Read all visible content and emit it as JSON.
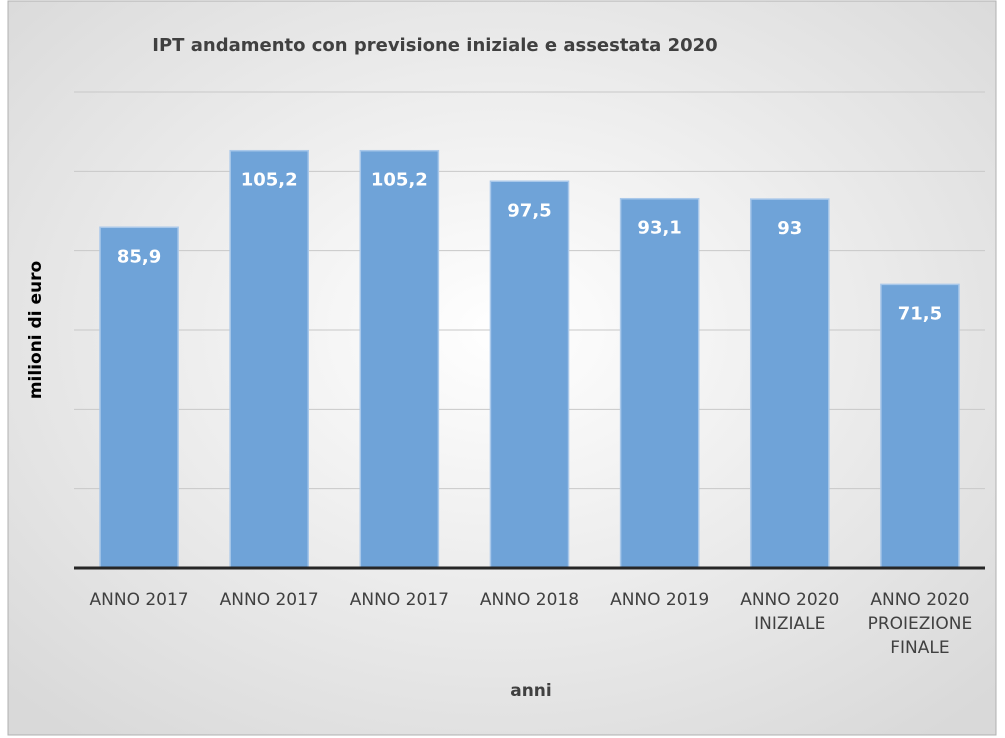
{
  "chart_data": {
    "type": "bar",
    "title": "IPT andamento con previsione iniziale e assestata 2020",
    "y_label": "milioni di euro",
    "x_label": "anni",
    "categories": [
      "ANNO 2017",
      "ANNO 2017",
      "ANNO 2017",
      "ANNO 2018",
      "ANNO 2019",
      "ANNO 2020 INIZIALE",
      "ANNO 2020 PROIEZIONE FINALE"
    ],
    "values": [
      85.9,
      105.2,
      105.2,
      97.5,
      93.1,
      93,
      71.5
    ],
    "value_labels": [
      "85,9",
      "105,2",
      "105,2",
      "97,5",
      "93,1",
      "93",
      "71,5"
    ],
    "color": "#6fa3d8",
    "ylim": [
      0,
      120
    ],
    "yticks": [
      0,
      20,
      40,
      60,
      80,
      100,
      120
    ],
    "grid": true
  }
}
